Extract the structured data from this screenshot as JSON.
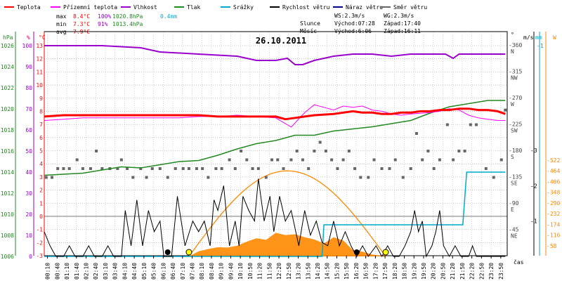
{
  "chart_data": {
    "type": "line",
    "title": "26.10.2011",
    "x_ticks": [
      "00:10",
      "00:40",
      "01:10",
      "01:40",
      "02:10",
      "02:40",
      "03:10",
      "03:40",
      "04:10",
      "04:40",
      "05:10",
      "05:40",
      "06:10",
      "06:40",
      "07:10",
      "07:40",
      "08:10",
      "08:40",
      "09:10",
      "09:40",
      "10:10",
      "10:50",
      "11:20",
      "11:50",
      "12:20",
      "12:50",
      "13:20",
      "13:50",
      "14:20",
      "14:50",
      "15:20",
      "15:50",
      "16:20",
      "16:50",
      "17:20",
      "17:50",
      "18:20",
      "18:50",
      "19:20",
      "19:50",
      "20:20",
      "20:50",
      "21:20",
      "21:50",
      "22:20",
      "22:50",
      "23:20",
      "23:50"
    ],
    "x_axis_label": "čas",
    "legend": [
      {
        "name": "Teplota",
        "color": "#ff0000"
      },
      {
        "name": "Přízemní teplota",
        "color": "#ff00ff"
      },
      {
        "name": "Vlhkost",
        "color": "#9900cc"
      },
      {
        "name": "Tlak",
        "color": "#228822"
      },
      {
        "name": "Srážky",
        "color": "#00aacc"
      },
      {
        "name": "Rychlost větru",
        "color": "#000000"
      },
      {
        "name": "Náraz větru",
        "color": "#000088"
      },
      {
        "name": "Směr větru",
        "color": "#666666"
      }
    ],
    "stats": {
      "max_label": "max",
      "min_label": "min",
      "avg_label": "avg",
      "max_temp": "8.4°C",
      "max_hum": "100%",
      "max_press": "1020.8hPa",
      "max_rain": "0.4mm",
      "min_temp": "7.3°C",
      "min_hum": "91%",
      "min_press": "1013.4hPa",
      "avg_temp": "7.9°C"
    },
    "info": {
      "ws": "WS:2.3m/s",
      "wg": "WG:2.3m/s",
      "sun": "Slunce",
      "sun_rise": "Východ:07:28",
      "sun_set": "Západ:17:40",
      "moon": "Měsíc",
      "moon_rise": "Východ:6:06",
      "moon_set": "Západ:16:11"
    },
    "axes": {
      "hpa_unit": "hPa",
      "hpa_ticks": [
        "1026",
        "1024",
        "1022",
        "1020",
        "1018",
        "1016",
        "1014",
        "1012",
        "1010",
        "1008",
        "1006"
      ],
      "pct_unit": "%",
      "pct_ticks": [
        "100",
        "90",
        "80",
        "70",
        "60",
        "50",
        "40",
        "30",
        "20",
        "10",
        "0"
      ],
      "temp_unit": "°C",
      "temp_ticks": [
        "13",
        "12",
        "11",
        "10",
        "9",
        "8",
        "7",
        "6",
        "5",
        "4",
        "3",
        "2",
        "1",
        "0",
        "-1",
        "-2",
        "-3"
      ],
      "dir_unit": "°",
      "dir_ticks": [
        {
          "deg": "360",
          "label": "N"
        },
        {
          "deg": "315",
          "label": "NW"
        },
        {
          "deg": "270",
          "label": "W"
        },
        {
          "deg": "225",
          "label": "SW"
        },
        {
          "deg": "180",
          "label": "S"
        },
        {
          "deg": "135",
          "label": "SE"
        },
        {
          "deg": "90",
          "label": "E"
        },
        {
          "deg": "45",
          "label": "NE"
        }
      ],
      "ms_unit": "m/s",
      "ms_ticks": [
        "3",
        "2",
        "1"
      ],
      "mm_unit": "mm",
      "mm_ticks": [
        "1"
      ],
      "w_unit": "W",
      "w_ticks": [
        "522",
        "464",
        "406",
        "348",
        "290",
        "232",
        "174",
        "116",
        "58"
      ]
    },
    "temp_range": [
      -3,
      13
    ],
    "series": {
      "temperature": [
        [
          0,
          7.6
        ],
        [
          1,
          7.7
        ],
        [
          2,
          7.7
        ],
        [
          3,
          7.7
        ],
        [
          4,
          7.7
        ],
        [
          5,
          7.7
        ],
        [
          6,
          7.7
        ],
        [
          7,
          7.7
        ],
        [
          8,
          7.7
        ],
        [
          9,
          7.6
        ],
        [
          10,
          7.6
        ],
        [
          11,
          7.6
        ],
        [
          12,
          7.6
        ],
        [
          12.5,
          7.4
        ],
        [
          13,
          7.5
        ],
        [
          13.5,
          7.6
        ],
        [
          14,
          7.7
        ],
        [
          15,
          7.8
        ],
        [
          15.5,
          7.9
        ],
        [
          16,
          8.0
        ],
        [
          16.5,
          7.9
        ],
        [
          17,
          7.9
        ],
        [
          17.5,
          7.8
        ],
        [
          18,
          7.8
        ],
        [
          18.5,
          7.9
        ],
        [
          19,
          7.9
        ],
        [
          19.5,
          8.0
        ],
        [
          20,
          8.0
        ],
        [
          20.5,
          8.1
        ],
        [
          21,
          8.1
        ],
        [
          21.5,
          8.2
        ],
        [
          22,
          8.2
        ],
        [
          22.5,
          8.1
        ],
        [
          23,
          8.1
        ],
        [
          23.5,
          8.0
        ],
        [
          23.9,
          7.8
        ]
      ],
      "ground_temperature": [
        [
          0,
          7.3
        ],
        [
          1,
          7.4
        ],
        [
          2,
          7.5
        ],
        [
          3,
          7.5
        ],
        [
          4,
          7.5
        ],
        [
          5,
          7.5
        ],
        [
          6,
          7.5
        ],
        [
          7,
          7.5
        ],
        [
          8,
          7.6
        ],
        [
          9,
          7.6
        ],
        [
          10,
          7.7
        ],
        [
          11,
          7.6
        ],
        [
          12,
          7.5
        ],
        [
          12.8,
          6.8
        ],
        [
          13.5,
          7.9
        ],
        [
          14,
          8.5
        ],
        [
          14.5,
          8.3
        ],
        [
          15,
          8.1
        ],
        [
          15.5,
          8.4
        ],
        [
          16,
          8.3
        ],
        [
          16.5,
          8.4
        ],
        [
          17,
          8.1
        ],
        [
          17.5,
          8.0
        ],
        [
          18,
          7.8
        ],
        [
          18.5,
          7.7
        ],
        [
          19,
          7.8
        ],
        [
          20,
          7.9
        ],
        [
          20.5,
          8.0
        ],
        [
          21,
          8.2
        ],
        [
          21.5,
          8.1
        ],
        [
          22,
          7.7
        ],
        [
          22.5,
          7.5
        ],
        [
          23,
          7.4
        ],
        [
          23.5,
          7.3
        ],
        [
          23.9,
          7.3
        ]
      ],
      "humidity": [
        [
          0,
          100
        ],
        [
          3,
          100
        ],
        [
          5,
          99
        ],
        [
          6,
          97
        ],
        [
          8,
          96
        ],
        [
          10,
          95
        ],
        [
          11,
          93
        ],
        [
          12,
          93
        ],
        [
          12.6,
          94
        ],
        [
          13,
          91
        ],
        [
          13.4,
          91
        ],
        [
          14,
          93
        ],
        [
          15,
          95
        ],
        [
          16,
          96
        ],
        [
          17,
          96
        ],
        [
          18,
          95
        ],
        [
          19,
          96
        ],
        [
          20,
          96
        ],
        [
          20.8,
          96
        ],
        [
          21.2,
          94
        ],
        [
          21.5,
          96
        ],
        [
          22,
          96
        ],
        [
          23,
          96
        ],
        [
          23.9,
          96
        ]
      ],
      "pressure": [
        [
          0,
          1013.7
        ],
        [
          1,
          1013.8
        ],
        [
          2,
          1013.9
        ],
        [
          3,
          1014.2
        ],
        [
          4,
          1014.5
        ],
        [
          5,
          1014.4
        ],
        [
          6,
          1014.7
        ],
        [
          7,
          1015.0
        ],
        [
          8,
          1015.1
        ],
        [
          9,
          1015.6
        ],
        [
          10,
          1016.2
        ],
        [
          11,
          1016.7
        ],
        [
          12,
          1017.0
        ],
        [
          13,
          1017.5
        ],
        [
          14,
          1017.5
        ],
        [
          15,
          1017.9
        ],
        [
          16,
          1018.1
        ],
        [
          17,
          1018.3
        ],
        [
          18,
          1018.6
        ],
        [
          19,
          1018.9
        ],
        [
          20,
          1019.6
        ],
        [
          21,
          1020.2
        ],
        [
          22,
          1020.5
        ],
        [
          23,
          1020.8
        ],
        [
          23.9,
          1020.8
        ]
      ],
      "rain_total": [
        [
          0,
          0
        ],
        [
          14.4,
          0
        ],
        [
          14.5,
          0.15
        ],
        [
          21.7,
          0.15
        ],
        [
          21.9,
          0.4
        ],
        [
          22.1,
          0.4
        ],
        [
          23.9,
          0.4
        ]
      ],
      "wind_speed": [
        [
          0,
          0.7
        ],
        [
          0.3,
          0.3
        ],
        [
          0.6,
          0.0
        ],
        [
          1.0,
          0.0
        ],
        [
          1.3,
          0.3
        ],
        [
          1.6,
          0.0
        ],
        [
          2.0,
          0.0
        ],
        [
          2.3,
          0.3
        ],
        [
          2.6,
          0.0
        ],
        [
          3.0,
          0.0
        ],
        [
          3.3,
          0.3
        ],
        [
          3.6,
          0.0
        ],
        [
          4.0,
          0.0
        ],
        [
          4.2,
          1.3
        ],
        [
          4.5,
          0.3
        ],
        [
          4.8,
          1.6
        ],
        [
          5.1,
          0.3
        ],
        [
          5.4,
          1.3
        ],
        [
          5.7,
          0.7
        ],
        [
          6.0,
          1.0
        ],
        [
          6.2,
          0.0
        ],
        [
          6.6,
          0.0
        ],
        [
          6.9,
          1.7
        ],
        [
          7.3,
          0.3
        ],
        [
          7.7,
          1.0
        ],
        [
          8.0,
          0.7
        ],
        [
          8.3,
          1.0
        ],
        [
          8.6,
          0.3
        ],
        [
          8.8,
          1.6
        ],
        [
          9.0,
          1.3
        ],
        [
          9.3,
          2.0
        ],
        [
          9.6,
          0.3
        ],
        [
          9.9,
          1.0
        ],
        [
          10.1,
          0.3
        ],
        [
          10.3,
          1.7
        ],
        [
          10.6,
          1.3
        ],
        [
          10.9,
          1.0
        ],
        [
          11.1,
          2.2
        ],
        [
          11.4,
          1.0
        ],
        [
          11.7,
          1.7
        ],
        [
          11.9,
          0.7
        ],
        [
          12.2,
          1.7
        ],
        [
          12.5,
          1.0
        ],
        [
          12.8,
          1.3
        ],
        [
          13.2,
          0.3
        ],
        [
          13.5,
          1.3
        ],
        [
          13.8,
          0.6
        ],
        [
          14.1,
          1.0
        ],
        [
          14.4,
          0.4
        ],
        [
          14.7,
          0.3
        ],
        [
          15.0,
          1.0
        ],
        [
          15.3,
          0.3
        ],
        [
          15.6,
          0.7
        ],
        [
          15.9,
          0.3
        ],
        [
          16.2,
          0.0
        ],
        [
          16.5,
          0.3
        ],
        [
          16.8,
          0.0
        ],
        [
          17.2,
          0.3
        ],
        [
          17.5,
          0.0
        ],
        [
          17.8,
          0.3
        ],
        [
          18.1,
          0.0
        ],
        [
          18.4,
          0.0
        ],
        [
          18.7,
          0.3
        ],
        [
          19.0,
          0.7
        ],
        [
          19.2,
          1.3
        ],
        [
          19.4,
          0.7
        ],
        [
          19.6,
          1.0
        ],
        [
          19.8,
          0.0
        ],
        [
          20.1,
          0.3
        ],
        [
          20.3,
          0.7
        ],
        [
          20.5,
          1.3
        ],
        [
          20.7,
          0.3
        ],
        [
          21.0,
          0.0
        ],
        [
          21.3,
          0.3
        ],
        [
          21.6,
          0.0
        ],
        [
          22.0,
          0.0
        ],
        [
          22.2,
          0.3
        ],
        [
          22.4,
          0.0
        ],
        [
          23.9,
          0.0
        ]
      ],
      "wind_dir": [
        [
          0.1,
          135
        ],
        [
          0.4,
          135
        ],
        [
          0.7,
          150
        ],
        [
          1.0,
          150
        ],
        [
          1.3,
          150
        ],
        [
          1.7,
          165
        ],
        [
          2.0,
          150
        ],
        [
          2.4,
          150
        ],
        [
          2.7,
          180
        ],
        [
          3.0,
          150
        ],
        [
          3.4,
          150
        ],
        [
          3.8,
          150
        ],
        [
          4.0,
          165
        ],
        [
          4.3,
          150
        ],
        [
          4.6,
          135
        ],
        [
          5.0,
          150
        ],
        [
          5.3,
          135
        ],
        [
          5.6,
          150
        ],
        [
          6.0,
          150
        ],
        [
          6.4,
          135
        ],
        [
          6.8,
          150
        ],
        [
          7.2,
          150
        ],
        [
          7.5,
          150
        ],
        [
          7.9,
          150
        ],
        [
          8.2,
          150
        ],
        [
          8.5,
          135
        ],
        [
          8.9,
          150
        ],
        [
          9.2,
          150
        ],
        [
          9.6,
          165
        ],
        [
          9.9,
          150
        ],
        [
          10.2,
          180
        ],
        [
          10.5,
          165
        ],
        [
          10.8,
          150
        ],
        [
          11.1,
          150
        ],
        [
          11.5,
          135
        ],
        [
          11.8,
          165
        ],
        [
          12.1,
          165
        ],
        [
          12.4,
          150
        ],
        [
          12.8,
          165
        ],
        [
          13.1,
          180
        ],
        [
          13.4,
          165
        ],
        [
          13.7,
          150
        ],
        [
          14.0,
          180
        ],
        [
          14.3,
          195
        ],
        [
          14.6,
          180
        ],
        [
          14.9,
          165
        ],
        [
          15.2,
          150
        ],
        [
          15.5,
          165
        ],
        [
          15.8,
          180
        ],
        [
          16.1,
          150
        ],
        [
          16.4,
          135
        ],
        [
          16.8,
          135
        ],
        [
          17.1,
          165
        ],
        [
          17.5,
          150
        ],
        [
          17.9,
          150
        ],
        [
          18.2,
          165
        ],
        [
          18.6,
          135
        ],
        [
          19.0,
          150
        ],
        [
          19.3,
          210
        ],
        [
          19.6,
          165
        ],
        [
          19.9,
          180
        ],
        [
          20.2,
          150
        ],
        [
          20.5,
          165
        ],
        [
          20.9,
          225
        ],
        [
          21.2,
          165
        ],
        [
          21.5,
          180
        ],
        [
          21.8,
          180
        ],
        [
          22.1,
          225
        ],
        [
          22.4,
          225
        ],
        [
          22.9,
          150
        ],
        [
          23.3,
          135
        ],
        [
          23.7,
          165
        ],
        [
          23.9,
          250
        ]
      ],
      "solar": [
        [
          7.5,
          0
        ],
        [
          8,
          28
        ],
        [
          8.5,
          40
        ],
        [
          9,
          50
        ],
        [
          9.5,
          48
        ],
        [
          10,
          58
        ],
        [
          10.5,
          80
        ],
        [
          11,
          98
        ],
        [
          11.5,
          90
        ],
        [
          12,
          128
        ],
        [
          12.5,
          116
        ],
        [
          13,
          120
        ],
        [
          13.5,
          104
        ],
        [
          14,
          92
        ],
        [
          14.5,
          70
        ],
        [
          15,
          104
        ],
        [
          15.5,
          86
        ],
        [
          16,
          34
        ],
        [
          16.5,
          26
        ],
        [
          17,
          10
        ],
        [
          17.5,
          4
        ],
        [
          17.7,
          0
        ]
      ],
      "solar_theoretical_peak": 464,
      "events": [
        {
          "t": 6.4,
          "kind": "moonrise"
        },
        {
          "t": 7.5,
          "kind": "sunrise"
        },
        {
          "t": 16.2,
          "kind": "moonset"
        },
        {
          "t": 17.7,
          "kind": "sunset"
        }
      ]
    }
  }
}
